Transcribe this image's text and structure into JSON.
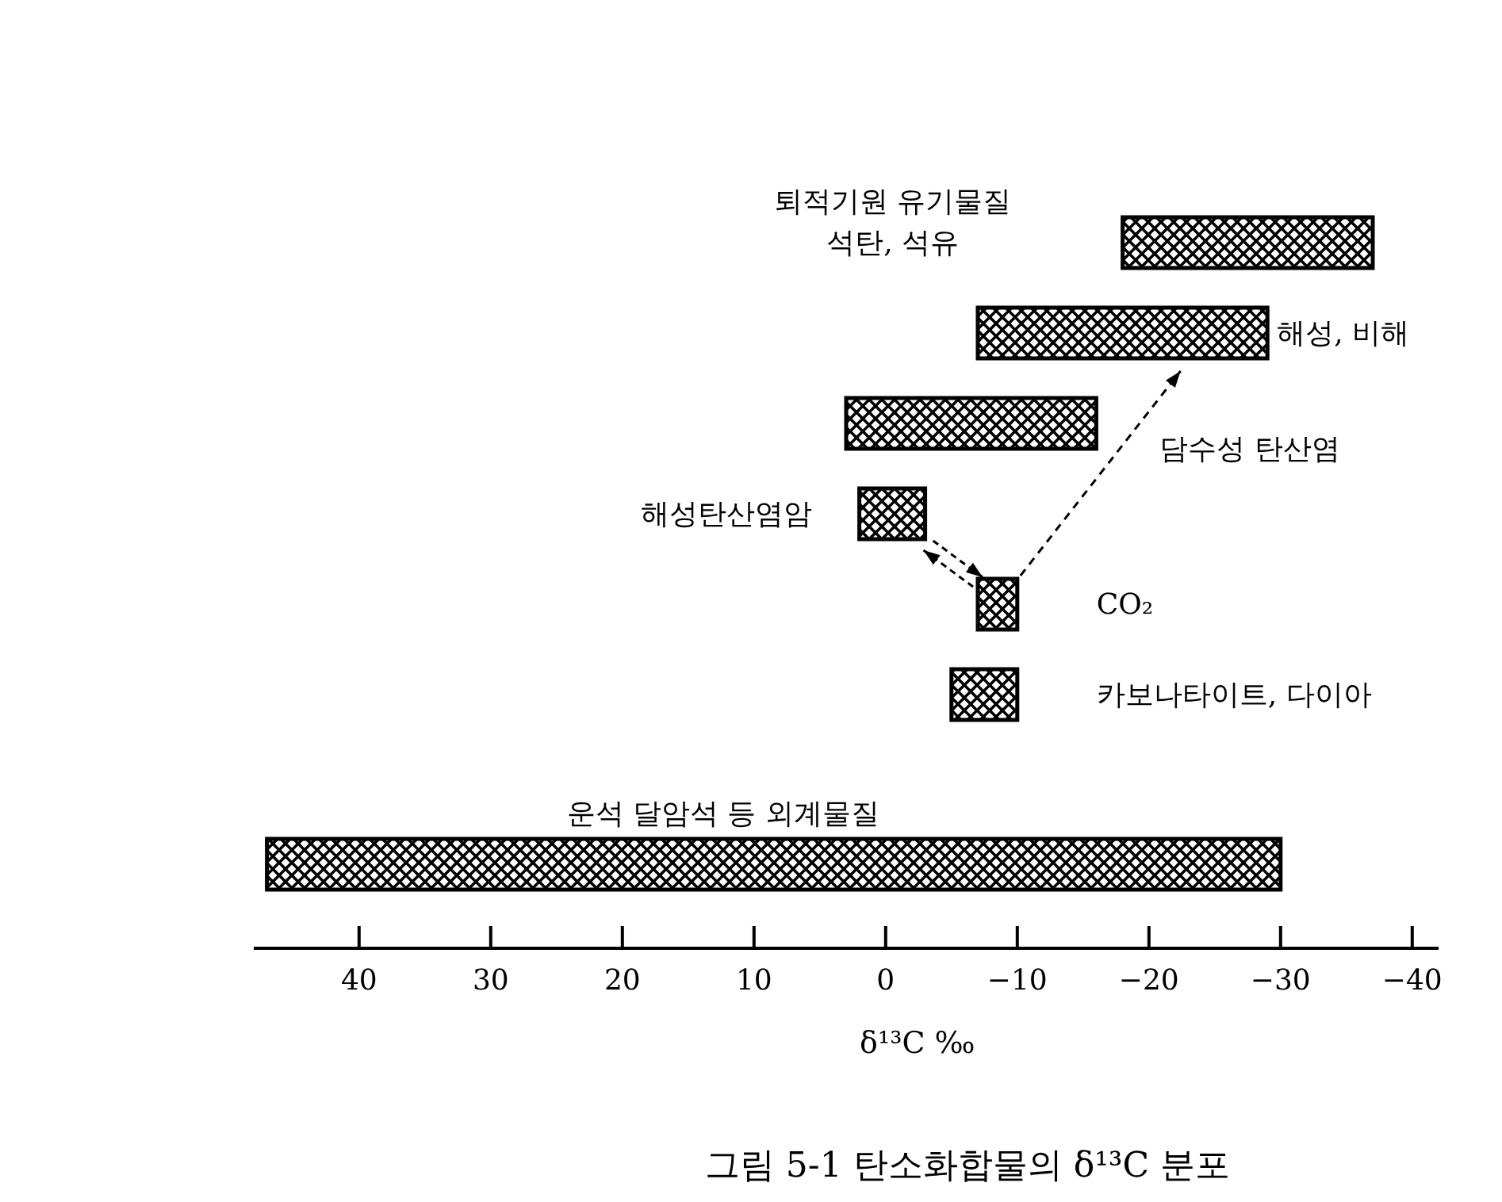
{
  "chart_data": {
    "type": "bar",
    "orientation": "horizontal",
    "title": "그림 5-1  탄소화합물의 δ¹³C 분포",
    "xlabel": "δ¹³C  ‰",
    "categories": [
      "퇴적기원 유기물질\n석탄, 석유",
      "해성, 비해",
      "담수성 탄산염",
      "해성탄산염암",
      "CO₂",
      "카보나타이트, 다이아",
      "운석 달암석 등 외계물질"
    ],
    "base": [
      -18,
      -7,
      3,
      2,
      -7,
      -5,
      47
    ],
    "values": [
      -19,
      -22,
      -19,
      -5,
      -3,
      -5,
      -77
    ],
    "color": "#000000",
    "xlim": [
      48,
      -42
    ],
    "xticks": [
      40,
      30,
      20,
      10,
      0,
      {
        "value": -10,
        "label": "−10"
      },
      {
        "value": -20,
        "label": "−20"
      },
      {
        "value": -30,
        "label": "−30"
      },
      {
        "value": -40,
        "label": "−40"
      }
    ]
  }
}
